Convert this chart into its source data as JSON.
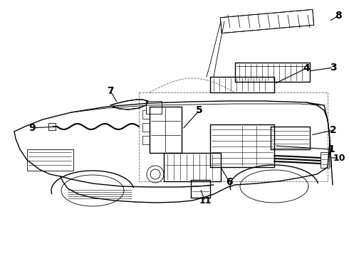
{
  "bg_color": "#ffffff",
  "line_color": "#000000",
  "lw_thin": 0.6,
  "lw_med": 1.0,
  "lw_thick": 1.5
}
